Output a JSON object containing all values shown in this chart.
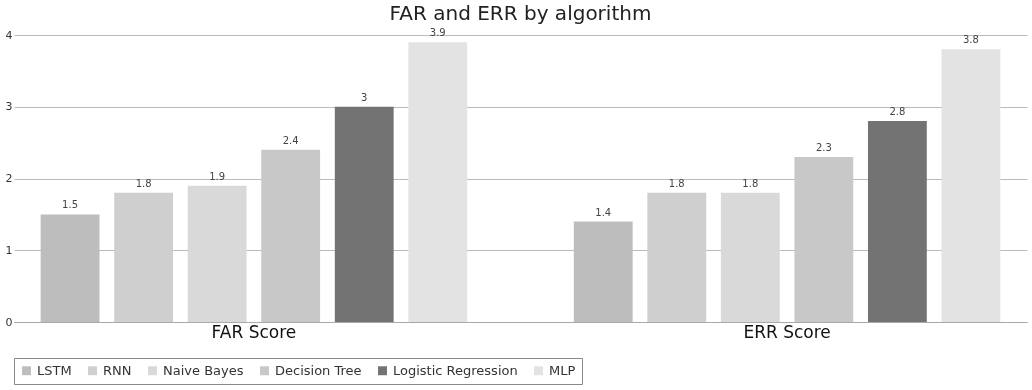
{
  "chart_data": {
    "type": "bar",
    "title": "FAR and ERR by algorithm",
    "categories": [
      "FAR Score",
      "ERR Score"
    ],
    "series": [
      {
        "name": "LSTM",
        "color": "#bdbdbd",
        "values": [
          1.5,
          1.4
        ]
      },
      {
        "name": "RNN",
        "color": "#cfcfcf",
        "values": [
          1.8,
          1.8
        ]
      },
      {
        "name": "Naive Bayes",
        "color": "#d9d9d9",
        "values": [
          1.9,
          1.8
        ]
      },
      {
        "name": "Decision Tree",
        "color": "#c8c8c8",
        "values": [
          2.4,
          2.3
        ]
      },
      {
        "name": "Logistic Regression",
        "color": "#737373",
        "values": [
          3,
          2.8
        ]
      },
      {
        "name": "MLP",
        "color": "#e3e3e3",
        "values": [
          3.9,
          3.8
        ]
      }
    ],
    "ylim": [
      0,
      4
    ],
    "yticks": [
      0,
      1,
      2,
      3,
      4
    ],
    "grid": "y",
    "legend": "bottom",
    "data_labels": true
  }
}
